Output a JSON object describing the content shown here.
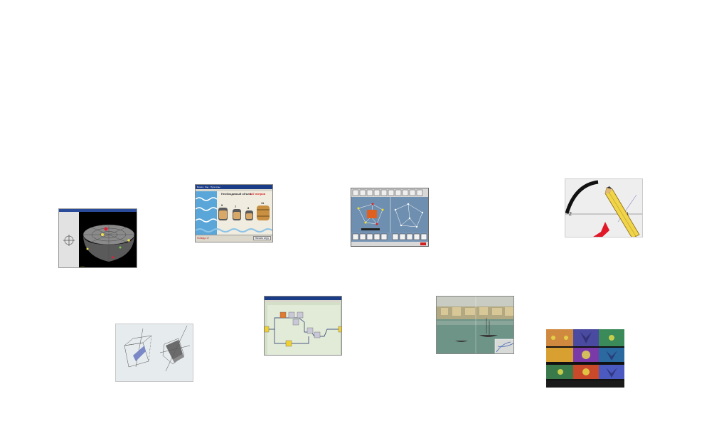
{
  "thumbnails": {
    "barrels": {
      "title_bar": "Бочки • Ход · Пуск игры",
      "heading": "Необходимый объем:",
      "volume_value": "147 литров",
      "barrel_labels": [
        "9",
        "7",
        "8",
        "11"
      ],
      "status_left": "Победа 17",
      "status_right": "Начать игру"
    }
  }
}
